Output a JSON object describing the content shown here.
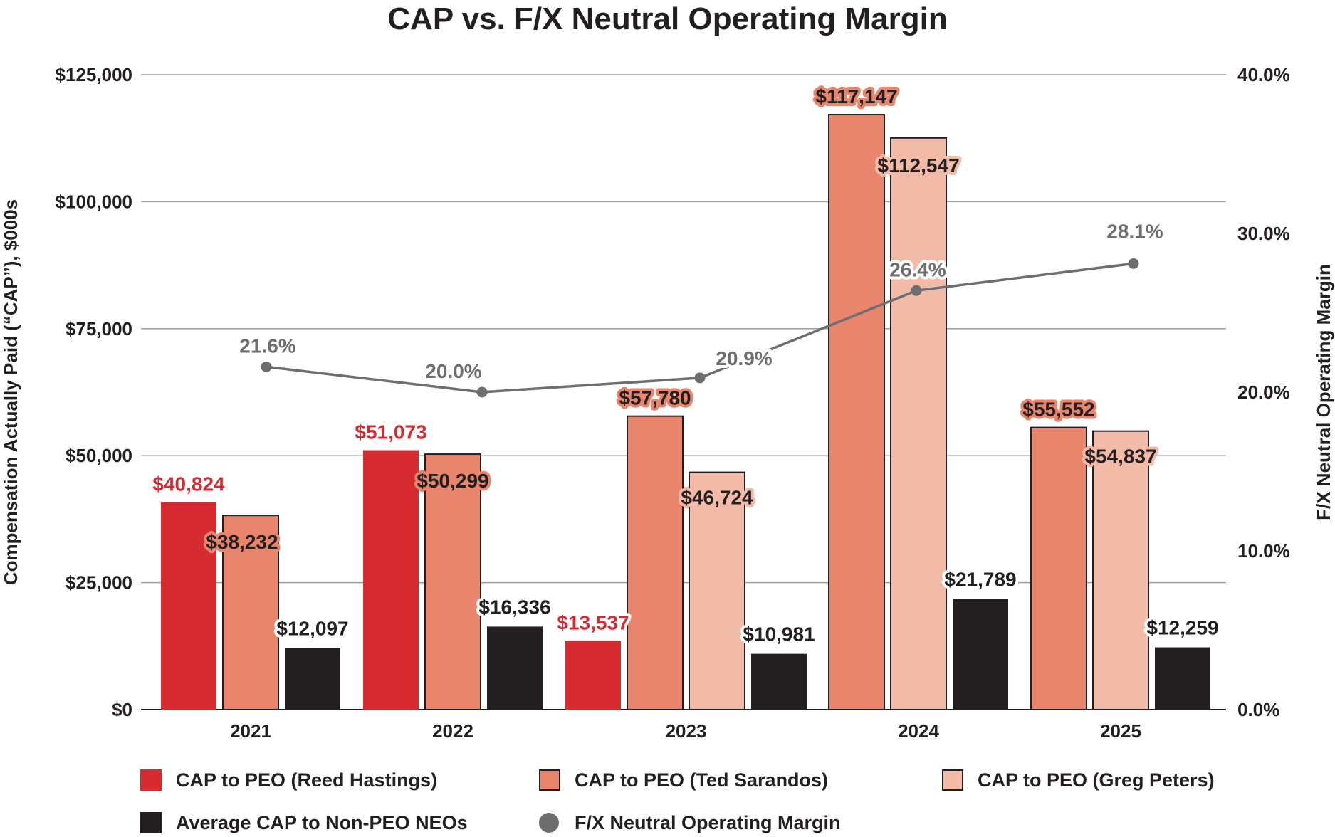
{
  "chart_data": {
    "type": "bar",
    "title": "CAP vs. F/X Neutral Operating Margin",
    "ylabel": "Compensation Actually Paid (“CAP”), $000s",
    "y2label": "F/X Neutral Operating Margin",
    "ylim": [
      0,
      125000
    ],
    "y2lim": [
      0,
      40
    ],
    "yticks": [
      "$0",
      "$25,000",
      "$50,000",
      "$75,000",
      "$100,000",
      "$125,000"
    ],
    "y2ticks": [
      "0.0%",
      "10.0%",
      "20.0%",
      "30.0%",
      "40.0%"
    ],
    "categories": [
      "2021",
      "2022",
      "2023",
      "2024",
      "2025"
    ],
    "grid": true,
    "legend_position": "bottom",
    "series": [
      {
        "name": "CAP to PEO (Reed Hastings)",
        "color": "#d62a31",
        "values": [
          40824,
          51073,
          13537,
          null,
          null
        ],
        "labels": [
          "$40,824",
          "$51,073",
          "$13,537",
          "",
          ""
        ]
      },
      {
        "name": "CAP to PEO (Ted Sarandos)",
        "color": "#e8856c",
        "values": [
          38232,
          50299,
          57780,
          117147,
          55552
        ],
        "labels": [
          "$38,232",
          "$50,299",
          "$57,780",
          "$117,147",
          "$55,552"
        ]
      },
      {
        "name": "CAP to PEO (Greg Peters)",
        "color": "#f2bba8",
        "values": [
          null,
          null,
          46724,
          112547,
          54837
        ],
        "labels": [
          "",
          "",
          "$46,724",
          "$112,547",
          "$54,837"
        ]
      },
      {
        "name": "Average CAP to Non-PEO NEOs",
        "color": "#231f20",
        "values": [
          12097,
          16336,
          10981,
          21789,
          12259
        ],
        "labels": [
          "$12,097",
          "$16,336",
          "$10,981",
          "$21,789",
          "$12,259"
        ]
      }
    ],
    "line_series": {
      "name": "F/X Neutral Operating Margin",
      "color": "#6d6e70",
      "axis": "right",
      "values": [
        21.6,
        20.0,
        20.9,
        26.4,
        28.1
      ],
      "labels": [
        "21.6%",
        "20.0%",
        "20.9%",
        "26.4%",
        "28.1%"
      ]
    }
  },
  "legend": {
    "items": [
      {
        "label": "CAP to PEO (Reed Hastings)",
        "color": "#d62a31",
        "shape": "square"
      },
      {
        "label": "CAP to PEO (Ted Sarandos)",
        "color": "#e8856c",
        "shape": "square"
      },
      {
        "label": "CAP to PEO (Greg Peters)",
        "color": "#f2bba8",
        "shape": "square"
      },
      {
        "label": "Average CAP to Non-PEO NEOs",
        "color": "#231f20",
        "shape": "square"
      },
      {
        "label": "F/X Neutral Operating Margin",
        "color": "#6d6e70",
        "shape": "circle"
      }
    ]
  }
}
